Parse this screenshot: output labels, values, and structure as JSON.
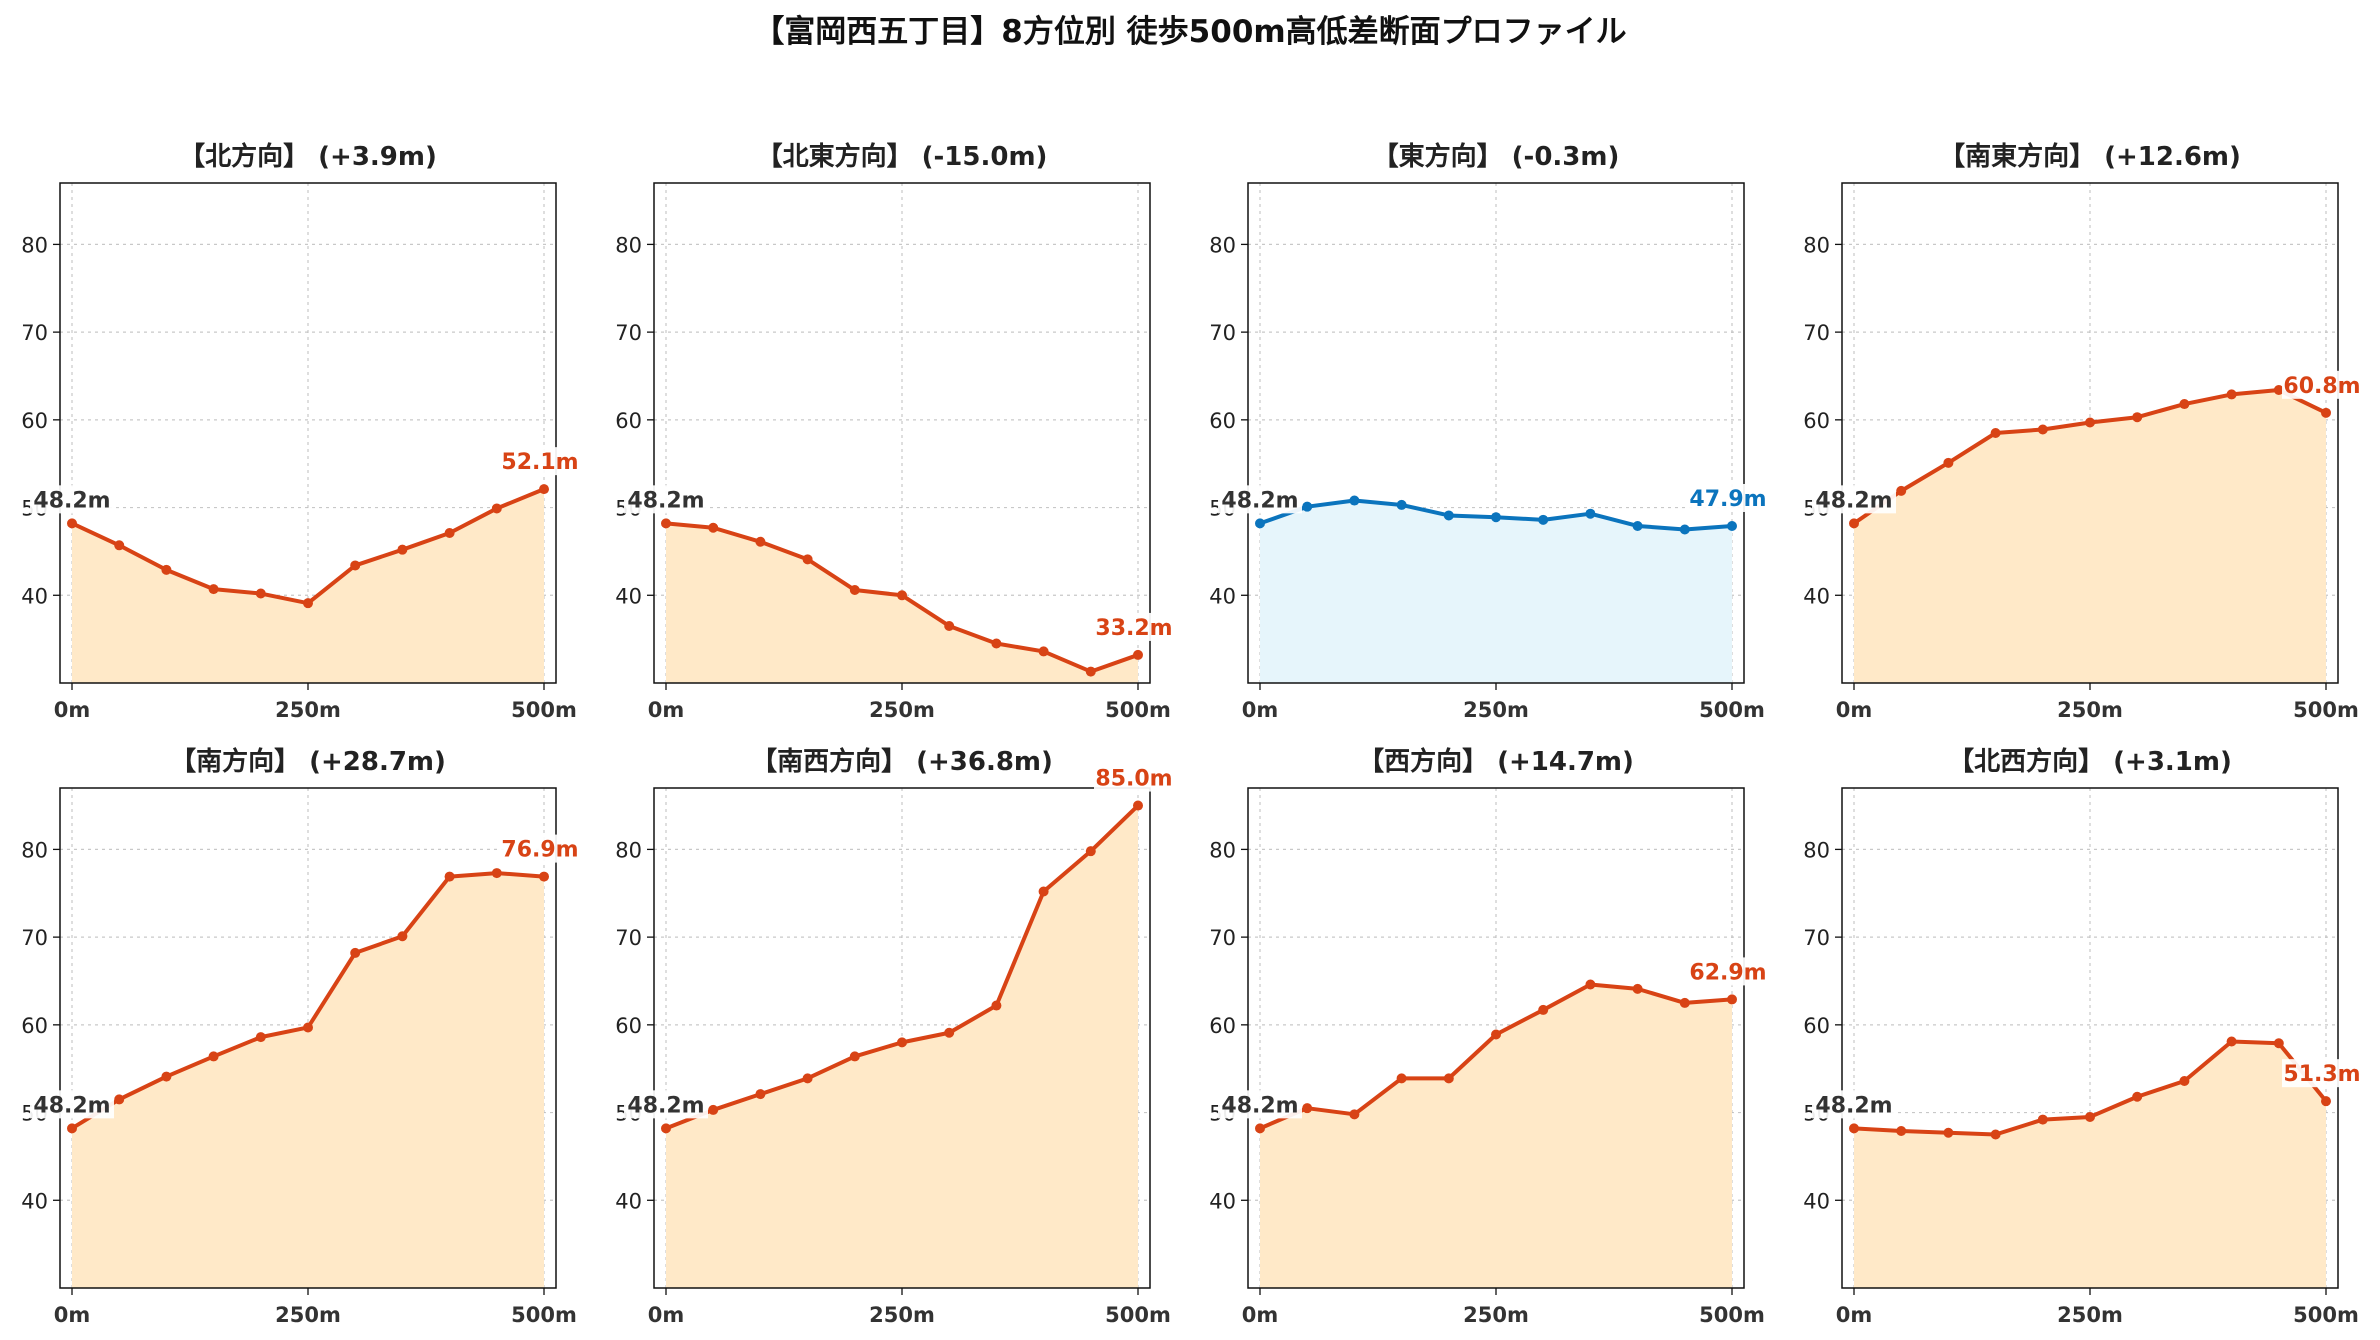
{
  "title": "【富岡西五丁目】8方位別 徒歩500m高低差断面プロファイル",
  "colors": {
    "up_line": "#d84315",
    "up_fill": "#ffe9c8",
    "flat_line": "#0b74bd",
    "flat_fill": "#e6f5fb",
    "start_label": "#333333",
    "grid": "#bbbbbb"
  },
  "chart_data": [
    {
      "type": "area",
      "title": "【北方向】 (+3.9m)",
      "x": [
        0,
        50,
        100,
        150,
        200,
        250,
        300,
        350,
        400,
        450,
        500
      ],
      "values": [
        48.2,
        45.7,
        42.9,
        40.7,
        40.2,
        39.1,
        43.4,
        45.2,
        47.1,
        49.9,
        52.1
      ],
      "xticks": [
        "0m",
        "250m",
        "500m"
      ],
      "yticks": [
        40,
        50,
        60,
        70,
        80
      ],
      "ylim": [
        30,
        87
      ],
      "start_label": "48.2m",
      "end_label": "52.1m",
      "style": "warm",
      "grid": true
    },
    {
      "type": "area",
      "title": "【北東方向】 (-15.0m)",
      "x": [
        0,
        50,
        100,
        150,
        200,
        250,
        300,
        350,
        400,
        450,
        500
      ],
      "values": [
        48.2,
        47.7,
        46.1,
        44.1,
        40.6,
        40.0,
        36.5,
        34.5,
        33.6,
        31.3,
        33.2
      ],
      "xticks": [
        "0m",
        "250m",
        "500m"
      ],
      "yticks": [
        40,
        50,
        60,
        70,
        80
      ],
      "ylim": [
        30,
        87
      ],
      "start_label": "48.2m",
      "end_label": "33.2m",
      "style": "warm",
      "grid": true
    },
    {
      "type": "area",
      "title": "【東方向】 (-0.3m)",
      "x": [
        0,
        50,
        100,
        150,
        200,
        250,
        300,
        350,
        400,
        450,
        500
      ],
      "values": [
        48.2,
        50.1,
        50.8,
        50.3,
        49.1,
        48.9,
        48.6,
        49.3,
        47.9,
        47.5,
        47.9
      ],
      "xticks": [
        "0m",
        "250m",
        "500m"
      ],
      "yticks": [
        40,
        50,
        60,
        70,
        80
      ],
      "ylim": [
        30,
        87
      ],
      "start_label": "48.2m",
      "end_label": "47.9m",
      "style": "flat",
      "grid": true
    },
    {
      "type": "area",
      "title": "【南東方向】 (+12.6m)",
      "x": [
        0,
        50,
        100,
        150,
        200,
        250,
        300,
        350,
        400,
        450,
        500
      ],
      "values": [
        48.2,
        51.9,
        55.1,
        58.5,
        58.9,
        59.7,
        60.3,
        61.8,
        62.9,
        63.4,
        60.8
      ],
      "xticks": [
        "0m",
        "250m",
        "500m"
      ],
      "yticks": [
        40,
        50,
        60,
        70,
        80
      ],
      "ylim": [
        30,
        87
      ],
      "start_label": "48.2m",
      "end_label": "60.8m",
      "style": "warm",
      "grid": true
    },
    {
      "type": "area",
      "title": "【南方向】 (+28.7m)",
      "x": [
        0,
        50,
        100,
        150,
        200,
        250,
        300,
        350,
        400,
        450,
        500
      ],
      "values": [
        48.2,
        51.5,
        54.1,
        56.4,
        58.6,
        59.7,
        68.2,
        70.1,
        76.9,
        77.3,
        76.9
      ],
      "xticks": [
        "0m",
        "250m",
        "500m"
      ],
      "yticks": [
        40,
        50,
        60,
        70,
        80
      ],
      "ylim": [
        30,
        87
      ],
      "start_label": "48.2m",
      "end_label": "76.9m",
      "style": "warm",
      "grid": true
    },
    {
      "type": "area",
      "title": "【南西方向】 (+36.8m)",
      "x": [
        0,
        50,
        100,
        150,
        200,
        250,
        300,
        350,
        400,
        450,
        500
      ],
      "values": [
        48.2,
        50.3,
        52.1,
        53.9,
        56.4,
        58.0,
        59.1,
        62.2,
        75.2,
        79.8,
        85.0
      ],
      "xticks": [
        "0m",
        "250m",
        "500m"
      ],
      "yticks": [
        40,
        50,
        60,
        70,
        80
      ],
      "ylim": [
        30,
        87
      ],
      "start_label": "48.2m",
      "end_label": "85.0m",
      "style": "warm",
      "grid": true
    },
    {
      "type": "area",
      "title": "【西方向】 (+14.7m)",
      "x": [
        0,
        50,
        100,
        150,
        200,
        250,
        300,
        350,
        400,
        450,
        500
      ],
      "values": [
        48.2,
        50.5,
        49.8,
        53.9,
        53.9,
        58.9,
        61.7,
        64.6,
        64.1,
        62.5,
        62.9
      ],
      "xticks": [
        "0m",
        "250m",
        "500m"
      ],
      "yticks": [
        40,
        50,
        60,
        70,
        80
      ],
      "ylim": [
        30,
        87
      ],
      "start_label": "48.2m",
      "end_label": "62.9m",
      "style": "warm",
      "grid": true
    },
    {
      "type": "area",
      "title": "【北西方向】 (+3.1m)",
      "x": [
        0,
        50,
        100,
        150,
        200,
        250,
        300,
        350,
        400,
        450,
        500
      ],
      "values": [
        48.2,
        47.9,
        47.7,
        47.5,
        49.2,
        49.5,
        51.8,
        53.6,
        58.1,
        57.9,
        51.3
      ],
      "xticks": [
        "0m",
        "250m",
        "500m"
      ],
      "yticks": [
        40,
        50,
        60,
        70,
        80
      ],
      "ylim": [
        30,
        87
      ],
      "start_label": "48.2m",
      "end_label": "51.3m",
      "style": "warm",
      "grid": true
    }
  ]
}
